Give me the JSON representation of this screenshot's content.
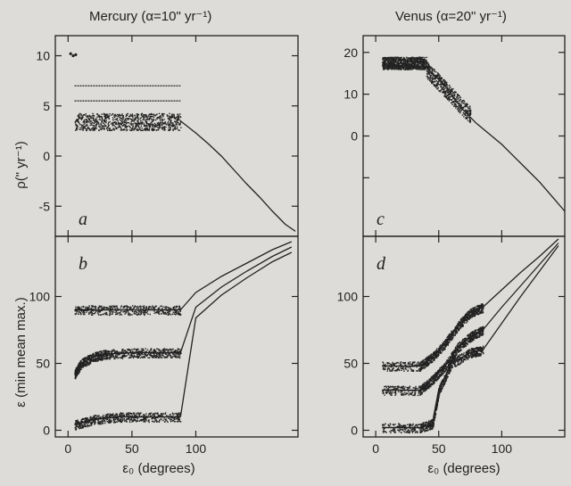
{
  "figure": {
    "columns": [
      {
        "planet": "Mercury",
        "title": "Mercury (α=10\" yr⁻¹)",
        "xlabel": "ε₀ (degrees)",
        "top_panel_label": "a",
        "bottom_panel_label": "b"
      },
      {
        "planet": "Venus",
        "title": "Venus (α=20\" yr⁻¹)",
        "xlabel": "ε₀ (degrees)",
        "top_panel_label": "c",
        "bottom_panel_label": "d"
      }
    ],
    "ylabel_top": "ρ(\" yr⁻¹)",
    "ylabel_bottom": "ε (min mean max.)"
  },
  "chart_data": [
    {
      "type": "scatter",
      "panel": "a",
      "xlim": [
        -10,
        180
      ],
      "ylim": [
        -8,
        12
      ],
      "xticks": [
        0,
        50,
        100
      ],
      "yticks": [
        -5,
        0,
        5,
        10
      ],
      "tick_labels_x": [],
      "tick_labels_y": [
        "-5",
        "0",
        "5",
        "10"
      ],
      "series": [
        {
          "kind": "band",
          "x_range": [
            5,
            88
          ],
          "y_range": [
            2.6,
            4.3
          ]
        },
        {
          "kind": "line",
          "x_range": [
            5,
            88
          ],
          "y_value": 5.5
        },
        {
          "kind": "line",
          "x_range": [
            5,
            88
          ],
          "y_value": 7.0
        },
        {
          "kind": "points",
          "x": [
            2,
            4,
            6
          ],
          "y": [
            10.2,
            10.0,
            10.1
          ]
        },
        {
          "kind": "curve",
          "x": [
            88,
            100,
            110,
            120,
            130,
            140,
            150,
            160,
            170,
            178
          ],
          "y": [
            3.5,
            2.3,
            1.2,
            0.0,
            -1.4,
            -2.8,
            -4.1,
            -5.5,
            -6.8,
            -7.5
          ]
        }
      ]
    },
    {
      "type": "scatter",
      "panel": "b",
      "xlim": [
        -10,
        180
      ],
      "ylim": [
        -5,
        145
      ],
      "xticks": [
        0,
        50,
        100
      ],
      "yticks": [
        0,
        50,
        100
      ],
      "tick_labels_x": [
        "0",
        "50",
        "100"
      ],
      "tick_labels_y": [
        "0",
        "50",
        "100"
      ],
      "series": [
        {
          "name": "max",
          "kind": "band_line",
          "x": [
            5,
            30,
            60,
            88
          ],
          "y": [
            90,
            90,
            90,
            90
          ]
        },
        {
          "name": "mean",
          "kind": "band_line",
          "x": [
            5,
            10,
            20,
            30,
            50,
            70,
            88
          ],
          "y": [
            42,
            50,
            55,
            57,
            58,
            58,
            58
          ]
        },
        {
          "name": "min",
          "kind": "band_line",
          "x": [
            5,
            20,
            40,
            60,
            88
          ],
          "y": [
            4,
            8,
            10,
            10,
            10
          ]
        },
        {
          "kind": "curve",
          "x": [
            88,
            100,
            120,
            140,
            160,
            175
          ],
          "y": [
            90,
            103,
            115,
            125,
            135,
            141
          ]
        },
        {
          "kind": "curve",
          "x": [
            88,
            100,
            120,
            140,
            160,
            175
          ],
          "y": [
            58,
            92,
            107,
            119,
            130,
            137
          ]
        },
        {
          "kind": "curve",
          "x": [
            88,
            100,
            120,
            140,
            160,
            175
          ],
          "y": [
            10,
            84,
            101,
            114,
            126,
            133
          ]
        }
      ]
    },
    {
      "type": "scatter",
      "panel": "c",
      "xlim": [
        -10,
        150
      ],
      "ylim": [
        -24,
        24
      ],
      "xticks": [
        0,
        50,
        100
      ],
      "yticks": [
        -10,
        0,
        10,
        20
      ],
      "tick_labels_x": [],
      "tick_labels_y": [
        "0",
        "10",
        "20"
      ],
      "series": [
        {
          "kind": "band",
          "x_range": [
            5,
            40
          ],
          "y_range": [
            16,
            19
          ]
        },
        {
          "kind": "scatter_cloud",
          "x_range": [
            40,
            75
          ],
          "y_range": [
            5,
            16
          ]
        },
        {
          "kind": "curve",
          "x": [
            5,
            40,
            55,
            70,
            80,
            90,
            100,
            110,
            120,
            130,
            140,
            150
          ],
          "y": [
            17,
            16.5,
            12,
            6,
            3,
            0.5,
            -2,
            -5,
            -8,
            -11,
            -14.5,
            -18
          ]
        }
      ]
    },
    {
      "type": "scatter",
      "panel": "d",
      "xlim": [
        -10,
        150
      ],
      "ylim": [
        -5,
        145
      ],
      "xticks": [
        0,
        50,
        100
      ],
      "yticks": [
        0,
        50,
        100
      ],
      "tick_labels_x": [
        "0",
        "50",
        "100"
      ],
      "tick_labels_y": [
        "0",
        "50",
        "100"
      ],
      "series": [
        {
          "name": "max",
          "kind": "band_line",
          "x": [
            5,
            35,
            45,
            55,
            65,
            75,
            85
          ],
          "y": [
            48,
            48,
            55,
            65,
            78,
            88,
            92
          ]
        },
        {
          "name": "mean",
          "kind": "band_line",
          "x": [
            5,
            35,
            45,
            55,
            65,
            75,
            85
          ],
          "y": [
            30,
            30,
            38,
            48,
            62,
            70,
            75
          ]
        },
        {
          "name": "min",
          "kind": "band_line",
          "x": [
            5,
            35,
            45,
            50,
            60,
            75,
            85
          ],
          "y": [
            2,
            2,
            5,
            30,
            50,
            58,
            60
          ]
        },
        {
          "kind": "curve",
          "x": [
            85,
            100,
            115,
            130,
            145
          ],
          "y": [
            92,
            105,
            118,
            130,
            143
          ]
        },
        {
          "kind": "curve",
          "x": [
            85,
            100,
            115,
            130,
            145
          ],
          "y": [
            75,
            92,
            108,
            124,
            140
          ]
        },
        {
          "kind": "curve",
          "x": [
            85,
            100,
            115,
            130,
            145
          ],
          "y": [
            60,
            80,
            100,
            119,
            138
          ]
        }
      ]
    }
  ]
}
